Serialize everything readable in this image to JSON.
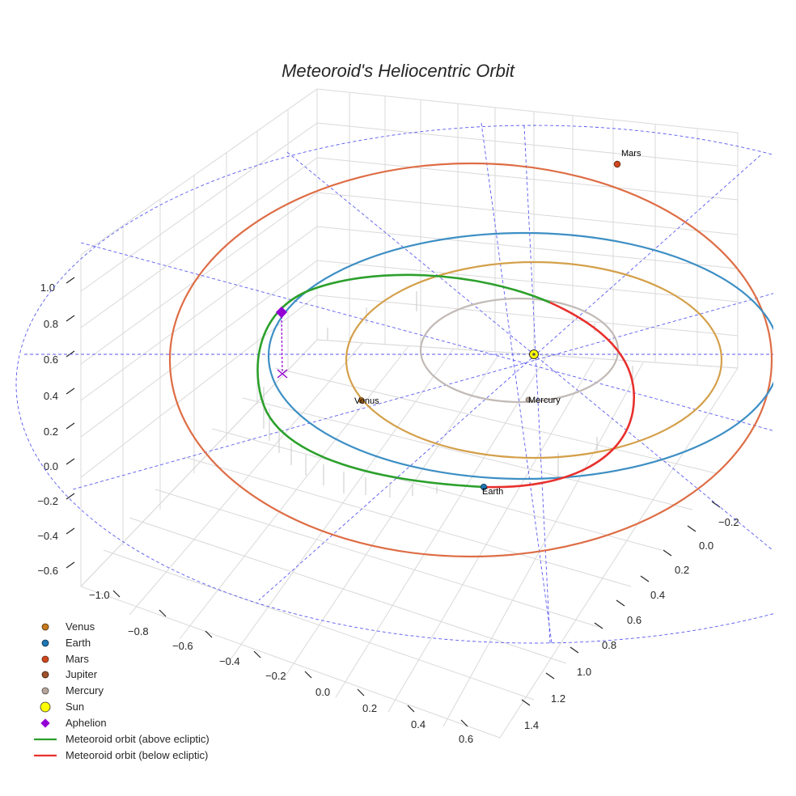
{
  "chart_data": {
    "type": "3d-line",
    "title": "Meteoroid's Heliocentric Orbit",
    "axes": {
      "x": {
        "label": "",
        "ticks": [
          "−1.0",
          "−0.8",
          "−0.6",
          "−0.4",
          "−0.2",
          "0.0",
          "0.2",
          "0.4",
          "0.6"
        ],
        "range": [
          -1.0,
          0.6
        ]
      },
      "y": {
        "label": "",
        "ticks": [
          "−0.2",
          "0.0",
          "0.2",
          "0.4",
          "0.6",
          "0.8",
          "1.0",
          "1.2",
          "1.4"
        ],
        "range": [
          -0.2,
          1.4
        ]
      },
      "z": {
        "label": "",
        "ticks": [
          "−0.6",
          "−0.4",
          "−0.2",
          "0.0",
          "0.2",
          "0.4",
          "0.6",
          "0.8",
          "1.0"
        ],
        "range": [
          -0.6,
          1.0
        ]
      }
    },
    "grid": true,
    "legend_position": "bottom-left",
    "planets": [
      {
        "name": "Venus",
        "color": "#c87a1e",
        "label": "Venus",
        "orbit_color": "#d4a04a",
        "orbit_radius_au": 0.72
      },
      {
        "name": "Earth",
        "color": "#1f77b4",
        "label": "Earth",
        "orbit_color": "#3d8fc4",
        "orbit_radius_au": 1.0
      },
      {
        "name": "Mars",
        "color": "#d0461e",
        "label": "Mars",
        "orbit_color": "#de6d45",
        "orbit_radius_au": 1.52
      },
      {
        "name": "Mercury",
        "color": "#b8a59a",
        "label": "Mercury",
        "orbit_color": "#c2bab6",
        "orbit_radius_au": 0.39
      }
    ],
    "sun": {
      "name": "Sun",
      "color": "#ffff00"
    },
    "aphelion": {
      "name": "Aphelion",
      "color": "#9400d3"
    },
    "meteoroid_orbit": {
      "above_ecliptic": {
        "name": "Meteoroid orbit (above ecliptic)",
        "color": "#2ca02c"
      },
      "below_ecliptic": {
        "name": "Meteoroid orbit (below ecliptic)",
        "color": "#e8302d"
      }
    },
    "legend": [
      {
        "label": "Venus",
        "marker": "circle",
        "color": "#c87a1e"
      },
      {
        "label": "Earth",
        "marker": "circle",
        "color": "#1f77b4"
      },
      {
        "label": "Mars",
        "marker": "circle",
        "color": "#d0461e"
      },
      {
        "label": "Jupiter",
        "marker": "circle",
        "color": "#a0522d"
      },
      {
        "label": "Mercury",
        "marker": "circle",
        "color": "#b8a59a"
      },
      {
        "label": "Sun",
        "marker": "circle-large",
        "color": "#ffff00"
      },
      {
        "label": "Aphelion",
        "marker": "diamond",
        "color": "#9400d3"
      },
      {
        "label": "Meteoroid orbit (above ecliptic)",
        "marker": "line",
        "color": "#2ca02c"
      },
      {
        "label": "Meteoroid orbit (below ecliptic)",
        "marker": "line",
        "color": "#e8302d"
      }
    ]
  }
}
